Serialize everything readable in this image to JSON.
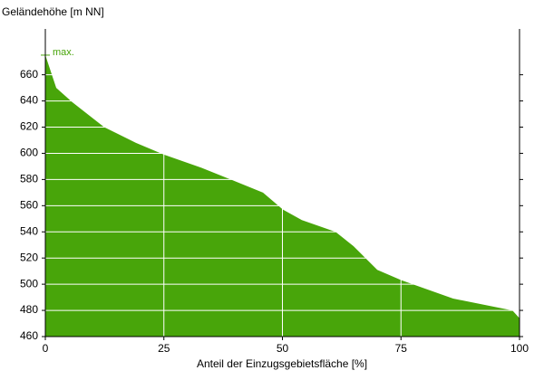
{
  "chart_data": {
    "type": "area",
    "y_label": "Geländehöhe [m NN]",
    "x_label": "Anteil der Einzugsgebietsfläche [%]",
    "annotation": "max.",
    "x": [
      0,
      2.3,
      5.7,
      12.4,
      19.1,
      25,
      32.9,
      39.8,
      45.9,
      50.1,
      54.1,
      61.2,
      65,
      70,
      75.1,
      86,
      98.5,
      100
    ],
    "values": [
      675,
      650,
      639,
      620,
      608,
      599,
      589,
      579,
      570,
      557,
      549,
      540,
      529,
      511,
      503,
      489,
      480,
      474
    ],
    "color": "#48a50a",
    "xlim": [
      0,
      100
    ],
    "xticks": [
      0,
      25,
      50,
      75,
      100
    ],
    "ylim": [
      460,
      695
    ],
    "yticks": [
      460,
      480,
      500,
      520,
      540,
      560,
      580,
      600,
      620,
      640,
      660
    ],
    "grid": true
  }
}
